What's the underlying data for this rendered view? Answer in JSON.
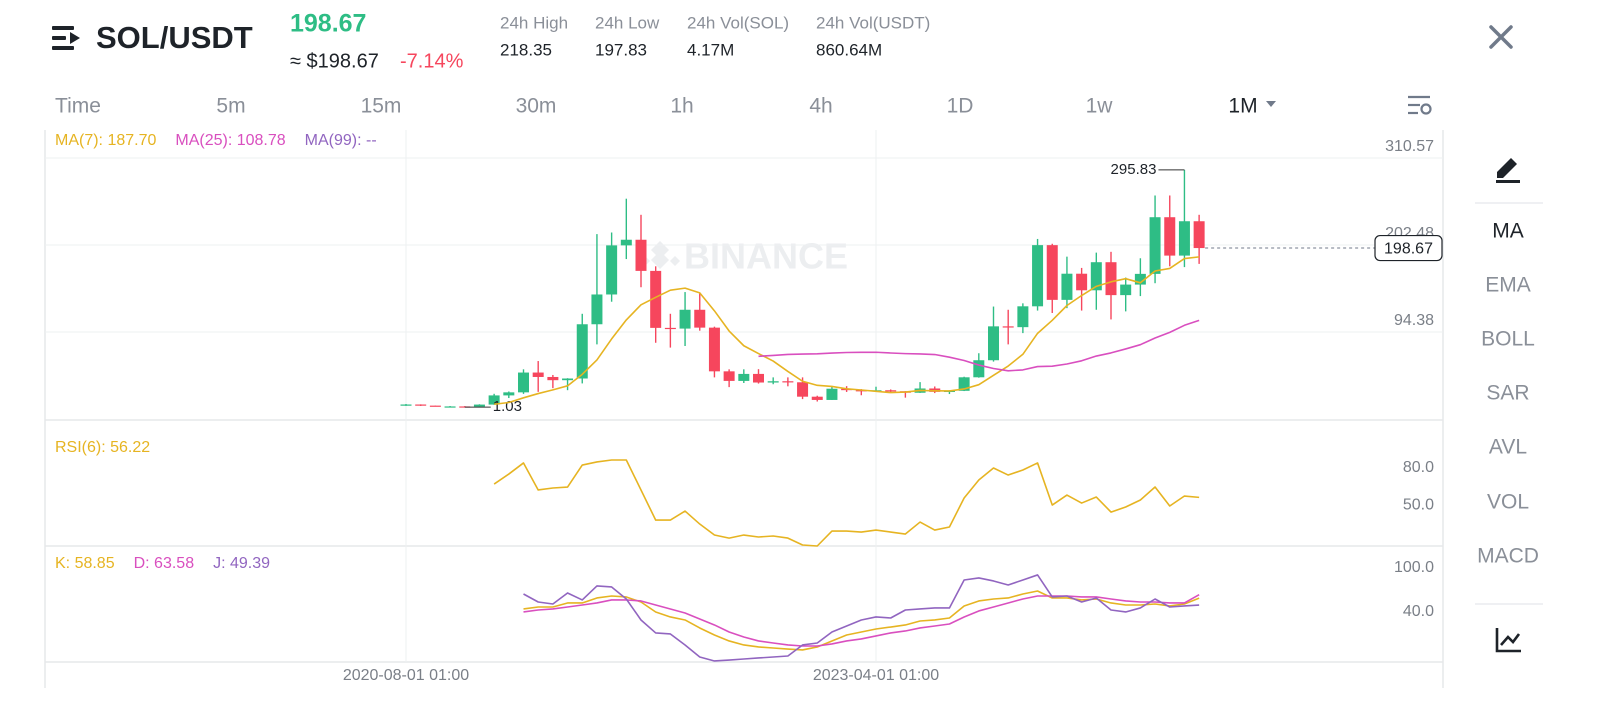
{
  "header": {
    "symbol": "SOL/USDT",
    "price": 198.67,
    "usd_price": "≈ $198.67",
    "change": "-7.14%"
  },
  "stats": [
    {
      "label": "24h High",
      "value": 218.35
    },
    {
      "label": "24h Low",
      "value": 197.83
    },
    {
      "label": "24h Vol(SOL)",
      "value": "4.17M"
    },
    {
      "label": "24h Vol(USDT)",
      "value": "860.64M"
    }
  ],
  "timeframes": [
    "Time",
    "5m",
    "15m",
    "30m",
    "1h",
    "4h",
    "1D",
    "1w",
    "1M"
  ],
  "watermark": "BINANCE",
  "side_menu": [
    "MA",
    "EMA",
    "BOLL",
    "SAR",
    "AVL",
    "VOL",
    "MACD"
  ],
  "chart_data": [
    {
      "type": "candlestick",
      "categories": [
        "2020-08-01 01:00",
        null,
        null,
        null,
        null,
        null,
        null,
        null,
        null,
        null,
        null,
        null,
        null,
        null,
        null,
        null,
        null,
        null,
        null,
        null,
        null,
        null,
        null,
        null,
        null,
        null,
        null,
        null,
        null,
        null,
        null,
        null,
        "2023-04-01 01:00",
        null,
        null,
        null,
        null,
        null,
        null,
        null,
        null,
        null,
        null,
        null,
        null,
        null,
        null,
        null,
        null,
        null,
        null,
        null,
        null,
        null,
        null
      ],
      "open": [
        2.8,
        4.3,
        2.9,
        1.9,
        1.9,
        1.5,
        4.2,
        15.6,
        19.4,
        44.0,
        38.5,
        34.5,
        36.6,
        104.0,
        141.0,
        202.0,
        209.0,
        170.3,
        99.5,
        98.6,
        122.0,
        99.8,
        45.5,
        33.6,
        42.3,
        31.6,
        33.2,
        31.9,
        14.0,
        9.96,
        23.9,
        22.1,
        20.8,
        22.0,
        20.8,
        18.9,
        24.2,
        20.0,
        21.3,
        38.1,
        59.3,
        101.4,
        100.4,
        126.3,
        202.3,
        134.3,
        166.8,
        146.2,
        181.1,
        140.2,
        153.3,
        166.6,
        237.0,
        189.3,
        232.0
      ],
      "high": [
        4.9,
        4.5,
        2.9,
        2.4,
        2.3,
        4.6,
        17.6,
        20.5,
        48.0,
        58.3,
        41.0,
        37.0,
        117.0,
        216.0,
        218.0,
        260.0,
        240.0,
        176.0,
        117.0,
        144.0,
        143.0,
        101.0,
        48.0,
        48.0,
        48.2,
        38.0,
        38.0,
        38.0,
        15.2,
        26.3,
        27.1,
        23.4,
        26.4,
        23.0,
        20.9,
        32.1,
        26.7,
        22.0,
        38.8,
        68.0,
        126.0,
        122.0,
        130.0,
        210.0,
        204.0,
        188.0,
        174.0,
        193.0,
        194.0,
        162.0,
        186.0,
        264.0,
        264.0,
        295.83,
        240.0
      ],
      "low": [
        2.6,
        2.5,
        1.9,
        1.6,
        1.03,
        1.4,
        4.0,
        12.3,
        17.5,
        20.0,
        24.6,
        22.1,
        30.5,
        79.0,
        132.0,
        185.0,
        150.0,
        81.0,
        75.0,
        77.0,
        96.0,
        38.0,
        25.9,
        31.0,
        30.3,
        29.5,
        26.9,
        11.0,
        8.0,
        9.9,
        19.9,
        15.8,
        20.2,
        18.6,
        12.8,
        18.7,
        18.5,
        17.3,
        21.0,
        37.6,
        57.6,
        79.0,
        93.0,
        121.0,
        118.0,
        124.0,
        121.0,
        122.0,
        110.0,
        120.0,
        139.0,
        155.0,
        176.0,
        175.0,
        179.0
      ],
      "close": [
        4.3,
        2.9,
        1.9,
        1.9,
        1.5,
        4.2,
        15.6,
        19.4,
        44.0,
        38.5,
        34.5,
        36.6,
        104.0,
        141.0,
        202.0,
        209.0,
        170.3,
        99.5,
        98.6,
        122.0,
        99.8,
        45.5,
        33.6,
        42.3,
        31.6,
        33.2,
        31.9,
        14.0,
        9.96,
        23.9,
        22.1,
        20.8,
        22.0,
        20.8,
        18.9,
        24.2,
        20.0,
        21.3,
        38.1,
        59.3,
        101.4,
        100.4,
        126.3,
        202.3,
        134.3,
        166.8,
        146.2,
        181.1,
        140.2,
        153.3,
        166.6,
        237.0,
        189.3,
        232.0,
        198.67
      ],
      "up_color": "#2ebd85",
      "down_color": "#f6465d",
      "ylim": [
        -14.96,
        345.36
      ],
      "yticks": [
        94.38,
        202.48,
        310.57
      ],
      "grid": true,
      "series": [
        {
          "name": "MA(7): 187.70",
          "color": "#e6b422",
          "values": [
            null,
            null,
            null,
            null,
            null,
            null,
            4.6,
            6.8,
            12.6,
            17.9,
            22.5,
            27.5,
            41.8,
            59.7,
            85.8,
            109.4,
            128.2,
            137.5,
            146.3,
            148.9,
            143.0,
            120.7,
            95.6,
            77.3,
            67.6,
            58.3,
            45.4,
            33.2,
            28.1,
            26.7,
            23.8,
            22.3,
            20.7,
            19.1,
            19.8,
            21.8,
            21.3,
            21.1,
            23.6,
            28.9,
            40.5,
            52.1,
            66.7,
            92.7,
            108.9,
            127.3,
            139.7,
            151.1,
            156.7,
            160.6,
            155.5,
            170.2,
            173.4,
            185.6,
            187.7
          ]
        },
        {
          "name": "MA(25): 108.78",
          "color": "#d94fbf",
          "values": [
            null,
            null,
            null,
            null,
            null,
            null,
            null,
            null,
            null,
            null,
            null,
            null,
            null,
            null,
            null,
            null,
            null,
            null,
            null,
            null,
            null,
            null,
            null,
            null,
            64.2,
            65.3,
            66.5,
            67.0,
            67.3,
            68.2,
            68.9,
            69.1,
            69.2,
            68.3,
            67.5,
            67.1,
            66.4,
            63.1,
            59.0,
            53.3,
            49.0,
            46.2,
            47.3,
            51.4,
            51.9,
            54.6,
            58.6,
            64.5,
            68.4,
            73.3,
            78.6,
            86.9,
            93.9,
            102.7,
            108.78
          ]
        },
        {
          "name": "MA(99): --",
          "color": "#9165c0"
        }
      ]
    },
    {
      "type": "line",
      "ylim": [
        16.8,
        118.1
      ],
      "yticks": [
        {
          "value": 80,
          "label": "80.0"
        },
        {
          "value": 50,
          "label": "50.0"
        }
      ],
      "grid": false,
      "series": [
        {
          "name": "RSI(6): 56.22",
          "color": "#e6b422",
          "values": [
            null,
            null,
            null,
            null,
            null,
            null,
            67.0,
            75.1,
            84.1,
            62.2,
            63.8,
            64.6,
            82.4,
            84.9,
            86.5,
            86.5,
            62.2,
            37.8,
            37.8,
            45.1,
            34.6,
            25.7,
            23.2,
            25.7,
            24.1,
            24.9,
            23.2,
            17.6,
            16.8,
            28.9,
            28.9,
            28.1,
            29.7,
            28.1,
            26.5,
            36.2,
            29.7,
            32.2,
            55.7,
            70.3,
            80.0,
            74.3,
            78.4,
            84.1,
            50.0,
            58.1,
            51.6,
            56.5,
            44.3,
            48.4,
            54.1,
            64.6,
            49.2,
            57.3,
            56.22
          ]
        }
      ]
    },
    {
      "type": "line",
      "ylim": [
        -28.2,
        128.6
      ],
      "yticks": [
        {
          "value": 100,
          "label": "100.0"
        },
        {
          "value": 40,
          "label": "40.0"
        }
      ],
      "grid": false,
      "series": [
        {
          "name": "K: 58.85",
          "color": "#e6b422",
          "values": [
            null,
            null,
            null,
            null,
            null,
            null,
            null,
            null,
            44.1,
            46.8,
            46.8,
            52.3,
            52.3,
            59.1,
            61.8,
            60.5,
            53.6,
            40,
            33.2,
            29.1,
            18.2,
            8.6,
            0.5,
            -5,
            -7.7,
            -9.1,
            -10.5,
            -11.8,
            -7.7,
            0.5,
            8.6,
            12.7,
            16.8,
            19.5,
            22.3,
            27.7,
            29.1,
            31.8,
            48.2,
            55,
            57.7,
            59.1,
            64.5,
            68.6,
            59.1,
            59.1,
            56.4,
            57.7,
            52.3,
            49.5,
            49.5,
            50.9,
            48.2,
            50.9,
            58.85
          ]
        },
        {
          "name": "D: 63.58",
          "color": "#d94fbf",
          "values": [
            null,
            null,
            null,
            null,
            null,
            null,
            null,
            null,
            40,
            42.7,
            44.1,
            46.8,
            49.5,
            52.3,
            56.4,
            56.4,
            55,
            49.5,
            44.1,
            38.6,
            30.5,
            22.3,
            12.7,
            5.9,
            0.5,
            -2.3,
            -5,
            -6.4,
            -6.4,
            -3.6,
            0.5,
            3.2,
            7.3,
            11.4,
            14.1,
            18.2,
            20.9,
            23.6,
            33.2,
            41.4,
            46.8,
            52.3,
            57.7,
            61.8,
            61.8,
            61.8,
            60.5,
            60.5,
            57.7,
            55,
            53.6,
            53.6,
            52.3,
            52.3,
            63.58
          ]
        },
        {
          "name": "J: 49.39",
          "color": "#9165c0",
          "values": [
            null,
            null,
            null,
            null,
            null,
            null,
            null,
            null,
            64.5,
            53.6,
            50.9,
            65.9,
            56.4,
            75.5,
            74.1,
            57.7,
            29.1,
            11.4,
            10,
            -5,
            -21.4,
            -26.8,
            -25.5,
            -24.1,
            -22.7,
            -21.4,
            -20,
            -5,
            -2.3,
            12.7,
            20.9,
            29.1,
            33.2,
            31.8,
            42.7,
            44.1,
            45.5,
            45.5,
            83.6,
            86.4,
            82.3,
            76.8,
            83.6,
            90.5,
            60.5,
            61.8,
            53.6,
            59.1,
            42.7,
            40,
            45.5,
            57.7,
            46.8,
            48.2,
            49.39
          ]
        }
      ]
    }
  ]
}
